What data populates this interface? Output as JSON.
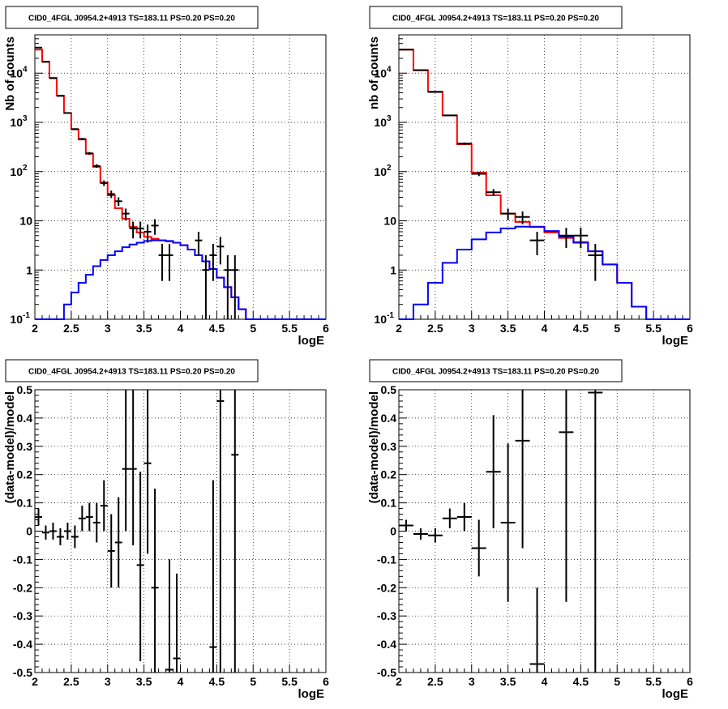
{
  "chart_data": [
    {
      "panel": "top-left",
      "type": "histogram",
      "title": "CID0_4FGL J0954.2+4913 TS=183.11 PS=0.20 PS=0.20",
      "xlabel": "logE",
      "ylabel": "Nb of counts",
      "xlim": [
        2,
        6
      ],
      "ylim": [
        0.1,
        60000
      ],
      "yscale": "log",
      "grid": true,
      "xticks": [
        "2",
        "2.5",
        "3",
        "3.5",
        "4",
        "4.5",
        "5",
        "5.5",
        "6"
      ],
      "yticks": [
        {
          "v": 0.1,
          "b": "10",
          "e": "-1"
        },
        {
          "v": 1,
          "b": "1",
          "e": ""
        },
        {
          "v": 10,
          "b": "10",
          "e": ""
        },
        {
          "v": 100,
          "b": "10",
          "e": "2"
        },
        {
          "v": 1000,
          "b": "10",
          "e": "3"
        },
        {
          "v": 10000,
          "b": "10",
          "e": "4"
        }
      ],
      "bin_edges": [
        2.0,
        2.1,
        2.2,
        2.3,
        2.4,
        2.5,
        2.6,
        2.7,
        2.8,
        2.9,
        3.0,
        3.1,
        3.2,
        3.3,
        3.4,
        3.5,
        3.6,
        3.7,
        3.8,
        3.9,
        4.0,
        4.1,
        4.2,
        4.3,
        4.4,
        4.5,
        4.6,
        4.7,
        4.8,
        4.9,
        5.0,
        5.1,
        5.2,
        5.3,
        5.4,
        5.5,
        5.6,
        5.7,
        5.8,
        5.9,
        6.0
      ],
      "series": [
        {
          "name": "",
          "color": "#ff0000",
          "style": "step",
          "values": [
            30000,
            17000,
            8000,
            3500,
            1550,
            720,
            450,
            230,
            125,
            60,
            33,
            18,
            11,
            7.5,
            5.8,
            4.7,
            4.3,
            4.0,
            3.8,
            3.6,
            3.2,
            2.6,
            2.0,
            1.5,
            1.05,
            0.7,
            0.45,
            0.28,
            0.16,
            0.1,
            0.1,
            0.1,
            0.1,
            0.1,
            0.1,
            0.1,
            0.1,
            0.1,
            0.1,
            0.1
          ]
        },
        {
          "name": "",
          "color": "#0000ff",
          "style": "step",
          "values": [
            0.1,
            0.1,
            0.1,
            0.1,
            0.2,
            0.35,
            0.55,
            0.8,
            1.2,
            1.6,
            2.0,
            2.4,
            2.9,
            3.3,
            3.6,
            3.9,
            4.0,
            4.0,
            3.9,
            3.6,
            3.2,
            2.6,
            2.0,
            1.5,
            1.05,
            0.7,
            0.45,
            0.28,
            0.16,
            0.1,
            0.1,
            0.1,
            0.1,
            0.1,
            0.1,
            0.1,
            0.1,
            0.1,
            0.1,
            0.1
          ]
        }
      ],
      "points": [
        {
          "x": 2.05,
          "y": 33000,
          "dx": 0.05,
          "lo": 32800,
          "hi": 33200
        },
        {
          "x": 2.15,
          "y": 17000,
          "dx": 0.05,
          "lo": 16870,
          "hi": 17130
        },
        {
          "x": 2.25,
          "y": 7900,
          "dx": 0.05,
          "lo": 7810,
          "hi": 7990
        },
        {
          "x": 2.35,
          "y": 3450,
          "dx": 0.05,
          "lo": 3390,
          "hi": 3510
        },
        {
          "x": 2.45,
          "y": 1550,
          "dx": 0.05,
          "lo": 1510,
          "hi": 1590
        },
        {
          "x": 2.55,
          "y": 730,
          "dx": 0.05,
          "lo": 703,
          "hi": 757
        },
        {
          "x": 2.65,
          "y": 460,
          "dx": 0.05,
          "lo": 439,
          "hi": 481
        },
        {
          "x": 2.75,
          "y": 235,
          "dx": 0.05,
          "lo": 220,
          "hi": 250
        },
        {
          "x": 2.85,
          "y": 130,
          "dx": 0.05,
          "lo": 119,
          "hi": 141
        },
        {
          "x": 2.95,
          "y": 58,
          "dx": 0.05,
          "lo": 51,
          "hi": 66
        },
        {
          "x": 3.05,
          "y": 35,
          "dx": 0.05,
          "lo": 29,
          "hi": 41
        },
        {
          "x": 3.15,
          "y": 25,
          "dx": 0.05,
          "lo": 20,
          "hi": 30
        },
        {
          "x": 3.25,
          "y": 14,
          "dx": 0.05,
          "lo": 10.3,
          "hi": 17.7
        },
        {
          "x": 3.35,
          "y": 7,
          "dx": 0.05,
          "lo": 4.4,
          "hi": 9.6
        },
        {
          "x": 3.45,
          "y": 7,
          "dx": 0.05,
          "lo": 4.4,
          "hi": 9.6
        },
        {
          "x": 3.55,
          "y": 6,
          "dx": 0.05,
          "lo": 3.6,
          "hi": 8.4
        },
        {
          "x": 3.65,
          "y": 8,
          "dx": 0.05,
          "lo": 5.2,
          "hi": 10.8
        },
        {
          "x": 3.75,
          "y": 2,
          "dx": 0.05,
          "lo": 0.6,
          "hi": 3.4
        },
        {
          "x": 3.85,
          "y": 2,
          "dx": 0.05,
          "lo": 0.6,
          "hi": 3.4
        },
        {
          "x": 4.25,
          "y": 4,
          "dx": 0.05,
          "lo": 2.0,
          "hi": 6.0
        },
        {
          "x": 4.35,
          "y": 1,
          "dx": 0.05,
          "lo": 0.1,
          "hi": 2.0
        },
        {
          "x": 4.45,
          "y": 2,
          "dx": 0.05,
          "lo": 0.6,
          "hi": 3.4
        },
        {
          "x": 4.55,
          "y": 3,
          "dx": 0.05,
          "lo": 1.3,
          "hi": 4.7
        },
        {
          "x": 4.65,
          "y": 1,
          "dx": 0.05,
          "lo": 0.1,
          "hi": 2.0
        },
        {
          "x": 4.75,
          "y": 1,
          "dx": 0.05,
          "lo": 0.1,
          "hi": 2.0
        }
      ]
    },
    {
      "panel": "top-right",
      "type": "histogram",
      "title": "CID0_4FGL J0954.2+4913 TS=183.11 PS=0.20 PS=0.20",
      "xlabel": "logE",
      "ylabel": "nb of counts",
      "xlim": [
        2,
        6
      ],
      "ylim": [
        0.1,
        60000
      ],
      "yscale": "log",
      "grid": true,
      "xticks": [
        "2",
        "2.5",
        "3",
        "3.5",
        "4",
        "4.5",
        "5",
        "5.5",
        "6"
      ],
      "yticks": [
        {
          "v": 0.1,
          "b": "10",
          "e": "-1"
        },
        {
          "v": 1,
          "b": "1",
          "e": ""
        },
        {
          "v": 10,
          "b": "10",
          "e": ""
        },
        {
          "v": 100,
          "b": "10",
          "e": "2"
        },
        {
          "v": 1000,
          "b": "10",
          "e": "3"
        },
        {
          "v": 10000,
          "b": "10",
          "e": "4"
        }
      ],
      "bin_edges": [
        2.0,
        2.2,
        2.4,
        2.6,
        2.8,
        3.0,
        3.2,
        3.4,
        3.6,
        3.8,
        4.0,
        4.2,
        4.4,
        4.6,
        4.8,
        5.0,
        5.2,
        5.4,
        5.6,
        5.8,
        6.0
      ],
      "series": [
        {
          "name": "",
          "color": "#ff0000",
          "style": "step",
          "values": [
            30000,
            11500,
            4200,
            1380,
            360,
            95,
            33,
            14,
            9.5,
            7.6,
            5.8,
            4.5,
            3.7,
            2.4,
            1.3,
            0.55,
            0.18,
            0.1,
            0.1,
            0.1
          ]
        },
        {
          "name": "",
          "color": "#0000ff",
          "style": "step",
          "values": [
            0.1,
            0.2,
            0.55,
            1.4,
            2.6,
            4.2,
            5.8,
            7.0,
            7.6,
            7.5,
            6.2,
            4.8,
            3.6,
            2.4,
            1.3,
            0.55,
            0.18,
            0.1,
            0.1,
            0.1
          ]
        }
      ],
      "points": [
        {
          "x": 2.1,
          "y": 30000,
          "dx": 0.1,
          "lo": 29830,
          "hi": 30170
        },
        {
          "x": 2.3,
          "y": 11500,
          "dx": 0.1,
          "lo": 11390,
          "hi": 11610
        },
        {
          "x": 2.5,
          "y": 4150,
          "dx": 0.1,
          "lo": 4090,
          "hi": 4210
        },
        {
          "x": 2.7,
          "y": 1390,
          "dx": 0.1,
          "lo": 1350,
          "hi": 1430
        },
        {
          "x": 2.9,
          "y": 370,
          "dx": 0.1,
          "lo": 350,
          "hi": 390
        },
        {
          "x": 3.1,
          "y": 90,
          "dx": 0.1,
          "lo": 81,
          "hi": 99
        },
        {
          "x": 3.3,
          "y": 38,
          "dx": 0.1,
          "lo": 32,
          "hi": 44
        },
        {
          "x": 3.5,
          "y": 14,
          "dx": 0.1,
          "lo": 10.3,
          "hi": 17.7
        },
        {
          "x": 3.7,
          "y": 12,
          "dx": 0.1,
          "lo": 8.5,
          "hi": 15.5
        },
        {
          "x": 3.9,
          "y": 4,
          "dx": 0.1,
          "lo": 2.0,
          "hi": 6.0
        },
        {
          "x": 4.3,
          "y": 5,
          "dx": 0.1,
          "lo": 2.8,
          "hi": 7.2
        },
        {
          "x": 4.5,
          "y": 5,
          "dx": 0.1,
          "lo": 2.8,
          "hi": 7.2
        },
        {
          "x": 4.7,
          "y": 2,
          "dx": 0.1,
          "lo": 0.6,
          "hi": 3.4
        }
      ]
    },
    {
      "panel": "bottom-left",
      "type": "scatter",
      "title": "CID0_4FGL J0954.2+4913 TS=183.11 PS=0.20 PS=0.20",
      "xlabel": "logE",
      "ylabel": "(data-model)/model",
      "xlim": [
        2,
        6
      ],
      "ylim": [
        -0.5,
        0.5
      ],
      "yscale": "linear",
      "grid": true,
      "xticks": [
        "2",
        "2.5",
        "3",
        "3.5",
        "4",
        "4.5",
        "5",
        "5.5",
        "6"
      ],
      "yticks": [
        {
          "v": -0.5,
          "b": "-0.5",
          "e": ""
        },
        {
          "v": -0.4,
          "b": "-0.4",
          "e": ""
        },
        {
          "v": -0.3,
          "b": "-0.3",
          "e": ""
        },
        {
          "v": -0.2,
          "b": "-0.2",
          "e": ""
        },
        {
          "v": -0.1,
          "b": "-0.1",
          "e": ""
        },
        {
          "v": 0,
          "b": "0",
          "e": ""
        },
        {
          "v": 0.1,
          "b": "0.1",
          "e": ""
        },
        {
          "v": 0.2,
          "b": "0.2",
          "e": ""
        },
        {
          "v": 0.3,
          "b": "0.3",
          "e": ""
        },
        {
          "v": 0.4,
          "b": "0.4",
          "e": ""
        },
        {
          "v": 0.5,
          "b": "0.5",
          "e": ""
        }
      ],
      "series": [],
      "points": [
        {
          "x": 2.05,
          "y": 0.05,
          "dx": 0.05,
          "lo": 0.02,
          "hi": 0.08
        },
        {
          "x": 2.15,
          "y": -0.005,
          "dx": 0.05,
          "lo": -0.03,
          "hi": 0.02
        },
        {
          "x": 2.25,
          "y": 0.0,
          "dx": 0.05,
          "lo": -0.03,
          "hi": 0.03
        },
        {
          "x": 2.35,
          "y": -0.02,
          "dx": 0.05,
          "lo": -0.05,
          "hi": 0.01
        },
        {
          "x": 2.45,
          "y": 0.0,
          "dx": 0.05,
          "lo": -0.03,
          "hi": 0.03
        },
        {
          "x": 2.55,
          "y": -0.02,
          "dx": 0.05,
          "lo": -0.06,
          "hi": 0.02
        },
        {
          "x": 2.65,
          "y": 0.045,
          "dx": 0.05,
          "lo": 0.0,
          "hi": 0.09
        },
        {
          "x": 2.75,
          "y": 0.05,
          "dx": 0.05,
          "lo": 0.0,
          "hi": 0.1
        },
        {
          "x": 2.85,
          "y": 0.03,
          "dx": 0.05,
          "lo": -0.04,
          "hi": 0.1
        },
        {
          "x": 2.95,
          "y": 0.09,
          "dx": 0.05,
          "lo": 0.0,
          "hi": 0.18
        },
        {
          "x": 3.05,
          "y": -0.07,
          "dx": 0.05,
          "lo": -0.2,
          "hi": 0.06
        },
        {
          "x": 3.15,
          "y": -0.04,
          "dx": 0.05,
          "lo": -0.2,
          "hi": 0.12
        },
        {
          "x": 3.25,
          "y": 0.22,
          "dx": 0.05,
          "lo": 0.0,
          "hi": 0.5
        },
        {
          "x": 3.35,
          "y": 0.22,
          "dx": 0.05,
          "lo": -0.05,
          "hi": 0.5
        },
        {
          "x": 3.45,
          "y": -0.12,
          "dx": 0.05,
          "lo": -0.46,
          "hi": 0.21
        },
        {
          "x": 3.55,
          "y": 0.24,
          "dx": 0.05,
          "lo": -0.08,
          "hi": 0.5
        },
        {
          "x": 3.65,
          "y": -0.2,
          "dx": 0.05,
          "lo": -0.5,
          "hi": 0.15
        },
        {
          "x": 3.85,
          "y": -0.49,
          "dx": 0.05,
          "lo": -0.5,
          "hi": -0.1
        },
        {
          "x": 3.95,
          "y": -0.45,
          "dx": 0.05,
          "lo": -0.5,
          "hi": -0.15
        },
        {
          "x": 4.45,
          "y": -0.41,
          "dx": 0.05,
          "lo": -0.5,
          "hi": 0.18
        },
        {
          "x": 4.55,
          "y": 0.46,
          "dx": 0.05,
          "lo": -0.5,
          "hi": 0.5
        },
        {
          "x": 4.75,
          "y": 0.27,
          "dx": 0.05,
          "lo": -0.5,
          "hi": 0.5
        }
      ]
    },
    {
      "panel": "bottom-right",
      "type": "scatter",
      "title": "CID0_4FGL J0954.2+4913 TS=183.11 PS=0.20 PS=0.20",
      "xlabel": "logE",
      "ylabel": "(data-model)/model",
      "xlim": [
        2,
        6
      ],
      "ylim": [
        -0.5,
        0.5
      ],
      "yscale": "linear",
      "grid": true,
      "xticks": [
        "2",
        "2.5",
        "3",
        "3.5",
        "4",
        "4.5",
        "5",
        "5.5",
        "6"
      ],
      "yticks": [
        {
          "v": -0.5,
          "b": "-0.5",
          "e": ""
        },
        {
          "v": -0.4,
          "b": "-0.4",
          "e": ""
        },
        {
          "v": -0.3,
          "b": "-0.3",
          "e": ""
        },
        {
          "v": -0.2,
          "b": "-0.2",
          "e": ""
        },
        {
          "v": -0.1,
          "b": "-0.1",
          "e": ""
        },
        {
          "v": 0,
          "b": "0",
          "e": ""
        },
        {
          "v": 0.1,
          "b": "0.1",
          "e": ""
        },
        {
          "v": 0.2,
          "b": "0.2",
          "e": ""
        },
        {
          "v": 0.3,
          "b": "0.3",
          "e": ""
        },
        {
          "v": 0.4,
          "b": "0.4",
          "e": ""
        },
        {
          "v": 0.5,
          "b": "0.5",
          "e": ""
        }
      ],
      "series": [],
      "points": [
        {
          "x": 2.1,
          "y": 0.02,
          "dx": 0.1,
          "lo": 0.0,
          "hi": 0.04
        },
        {
          "x": 2.3,
          "y": -0.01,
          "dx": 0.1,
          "lo": -0.03,
          "hi": 0.01
        },
        {
          "x": 2.5,
          "y": -0.015,
          "dx": 0.1,
          "lo": -0.04,
          "hi": 0.01
        },
        {
          "x": 2.7,
          "y": 0.045,
          "dx": 0.1,
          "lo": 0.01,
          "hi": 0.08
        },
        {
          "x": 2.9,
          "y": 0.05,
          "dx": 0.1,
          "lo": 0.0,
          "hi": 0.1
        },
        {
          "x": 3.1,
          "y": -0.06,
          "dx": 0.1,
          "lo": -0.16,
          "hi": 0.04
        },
        {
          "x": 3.3,
          "y": 0.21,
          "dx": 0.1,
          "lo": 0.01,
          "hi": 0.41
        },
        {
          "x": 3.5,
          "y": 0.03,
          "dx": 0.1,
          "lo": -0.25,
          "hi": 0.31
        },
        {
          "x": 3.7,
          "y": 0.32,
          "dx": 0.1,
          "lo": -0.06,
          "hi": 0.5
        },
        {
          "x": 3.9,
          "y": -0.47,
          "dx": 0.1,
          "lo": -0.5,
          "hi": -0.2
        },
        {
          "x": 4.3,
          "y": 0.35,
          "dx": 0.1,
          "lo": -0.25,
          "hi": 0.5
        },
        {
          "x": 4.7,
          "y": 0.49,
          "dx": 0.1,
          "lo": -0.5,
          "hi": 0.5
        }
      ]
    }
  ]
}
